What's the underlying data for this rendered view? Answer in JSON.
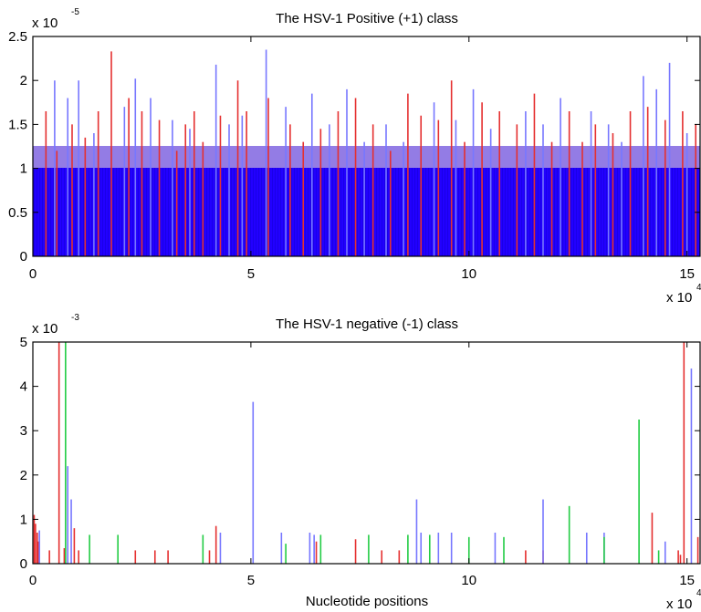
{
  "chart_data": [
    {
      "type": "bar",
      "title": "The HSV-1 Positive (+1) class",
      "xlabel": "",
      "ylabel": "",
      "x_multiplier": "x 10",
      "x_multiplier_exp": "4",
      "y_multiplier": "x 10",
      "y_multiplier_exp": "-5",
      "xlim": [
        0,
        15.3
      ],
      "ylim": [
        0,
        2.5
      ],
      "xticks": [
        "0",
        "5",
        "10",
        "15"
      ],
      "yticks": [
        "0",
        "0.5",
        "1",
        "1.5",
        "2",
        "2.5"
      ],
      "grid": false,
      "series": [
        {
          "color": "#e53030",
          "points": [
            [
              0.3,
              1.65
            ],
            [
              0.55,
              1.2
            ],
            [
              0.9,
              1.5
            ],
            [
              1.2,
              1.35
            ],
            [
              1.5,
              1.65
            ],
            [
              1.8,
              2.33
            ],
            [
              2.2,
              1.8
            ],
            [
              2.5,
              1.65
            ],
            [
              2.9,
              1.55
            ],
            [
              3.3,
              1.2
            ],
            [
              3.5,
              1.5
            ],
            [
              3.7,
              1.65
            ],
            [
              3.9,
              1.3
            ],
            [
              4.3,
              1.6
            ],
            [
              4.7,
              2.0
            ],
            [
              4.9,
              1.65
            ],
            [
              5.4,
              1.8
            ],
            [
              5.9,
              1.5
            ],
            [
              6.2,
              1.3
            ],
            [
              6.6,
              1.45
            ],
            [
              7.0,
              1.65
            ],
            [
              7.4,
              1.8
            ],
            [
              7.8,
              1.5
            ],
            [
              8.2,
              1.2
            ],
            [
              8.6,
              1.85
            ],
            [
              8.9,
              1.6
            ],
            [
              9.3,
              1.55
            ],
            [
              9.6,
              2.0
            ],
            [
              9.9,
              1.3
            ],
            [
              10.3,
              1.75
            ],
            [
              10.7,
              1.65
            ],
            [
              11.1,
              1.5
            ],
            [
              11.5,
              1.85
            ],
            [
              11.9,
              1.3
            ],
            [
              12.3,
              1.65
            ],
            [
              12.6,
              1.3
            ],
            [
              12.9,
              1.5
            ],
            [
              13.3,
              1.4
            ],
            [
              13.7,
              1.65
            ],
            [
              14.1,
              1.7
            ],
            [
              14.5,
              1.55
            ],
            [
              14.9,
              1.65
            ],
            [
              15.2,
              1.5
            ]
          ]
        },
        {
          "color": "#7777ff",
          "points": [
            [
              0.5,
              2.0
            ],
            [
              0.8,
              1.8
            ],
            [
              1.05,
              2.0
            ],
            [
              1.4,
              1.4
            ],
            [
              2.1,
              1.7
            ],
            [
              2.35,
              2.02
            ],
            [
              2.7,
              1.8
            ],
            [
              3.2,
              1.55
            ],
            [
              3.6,
              1.45
            ],
            [
              4.2,
              2.18
            ],
            [
              4.5,
              1.5
            ],
            [
              4.8,
              1.6
            ],
            [
              5.35,
              2.35
            ],
            [
              5.8,
              1.7
            ],
            [
              6.4,
              1.85
            ],
            [
              6.8,
              1.5
            ],
            [
              7.2,
              1.9
            ],
            [
              7.6,
              1.3
            ],
            [
              8.1,
              1.5
            ],
            [
              8.5,
              1.3
            ],
            [
              9.2,
              1.75
            ],
            [
              9.7,
              1.55
            ],
            [
              10.1,
              1.9
            ],
            [
              10.5,
              1.45
            ],
            [
              11.3,
              1.65
            ],
            [
              11.7,
              1.5
            ],
            [
              12.1,
              1.8
            ],
            [
              12.8,
              1.65
            ],
            [
              13.2,
              1.5
            ],
            [
              13.5,
              1.3
            ],
            [
              14.0,
              2.05
            ],
            [
              14.3,
              1.9
            ],
            [
              14.6,
              2.2
            ],
            [
              15.0,
              1.4
            ]
          ]
        }
      ]
    },
    {
      "type": "bar",
      "title": "The HSV-1 negative (-1) class",
      "xlabel": "Nucleotide positions",
      "ylabel": "",
      "x_multiplier": "x 10",
      "x_multiplier_exp": "4",
      "y_multiplier": "x 10",
      "y_multiplier_exp": "-3",
      "xlim": [
        0,
        15.3
      ],
      "ylim": [
        0,
        5
      ],
      "xticks": [
        "0",
        "5",
        "10",
        "15"
      ],
      "yticks": [
        "0",
        "1",
        "2",
        "3",
        "4",
        "5"
      ],
      "grid": false,
      "series": [
        {
          "color": "#e53030",
          "points": [
            [
              0.03,
              1.1
            ],
            [
              0.06,
              0.9
            ],
            [
              0.1,
              0.7
            ],
            [
              0.13,
              0.5
            ],
            [
              0.38,
              0.3
            ],
            [
              0.6,
              5.0
            ],
            [
              0.72,
              0.35
            ],
            [
              0.95,
              0.8
            ],
            [
              1.05,
              0.3
            ],
            [
              2.35,
              0.3
            ],
            [
              2.8,
              0.3
            ],
            [
              3.1,
              0.3
            ],
            [
              4.05,
              0.3
            ],
            [
              4.2,
              0.85
            ],
            [
              6.5,
              0.5
            ],
            [
              7.4,
              0.55
            ],
            [
              8.0,
              0.3
            ],
            [
              8.4,
              0.3
            ],
            [
              11.3,
              0.3
            ],
            [
              11.7,
              0.3
            ],
            [
              14.2,
              1.15
            ],
            [
              14.8,
              0.3
            ],
            [
              14.85,
              0.2
            ],
            [
              14.93,
              5.0
            ],
            [
              15.25,
              0.6
            ]
          ]
        },
        {
          "color": "#7777ff",
          "points": [
            [
              0.15,
              0.75
            ],
            [
              0.8,
              2.2
            ],
            [
              0.88,
              1.45
            ],
            [
              4.3,
              0.7
            ],
            [
              5.05,
              3.65
            ],
            [
              5.7,
              0.7
            ],
            [
              6.35,
              0.7
            ],
            [
              6.45,
              0.65
            ],
            [
              8.8,
              1.45
            ],
            [
              8.9,
              0.7
            ],
            [
              9.3,
              0.7
            ],
            [
              9.6,
              0.7
            ],
            [
              10.6,
              0.7
            ],
            [
              11.7,
              1.45
            ],
            [
              12.7,
              0.7
            ],
            [
              13.1,
              0.7
            ],
            [
              14.5,
              0.5
            ],
            [
              15.1,
              4.4
            ]
          ]
        },
        {
          "color": "#22cc44",
          "points": [
            [
              0.75,
              5.0
            ],
            [
              1.3,
              0.65
            ],
            [
              1.95,
              0.65
            ],
            [
              3.9,
              0.65
            ],
            [
              5.8,
              0.45
            ],
            [
              6.6,
              0.65
            ],
            [
              7.7,
              0.65
            ],
            [
              8.6,
              0.65
            ],
            [
              9.1,
              0.65
            ],
            [
              10.0,
              0.6
            ],
            [
              10.8,
              0.6
            ],
            [
              12.3,
              1.3
            ],
            [
              13.1,
              0.6
            ],
            [
              13.9,
              3.25
            ],
            [
              14.35,
              0.3
            ]
          ]
        }
      ]
    }
  ]
}
